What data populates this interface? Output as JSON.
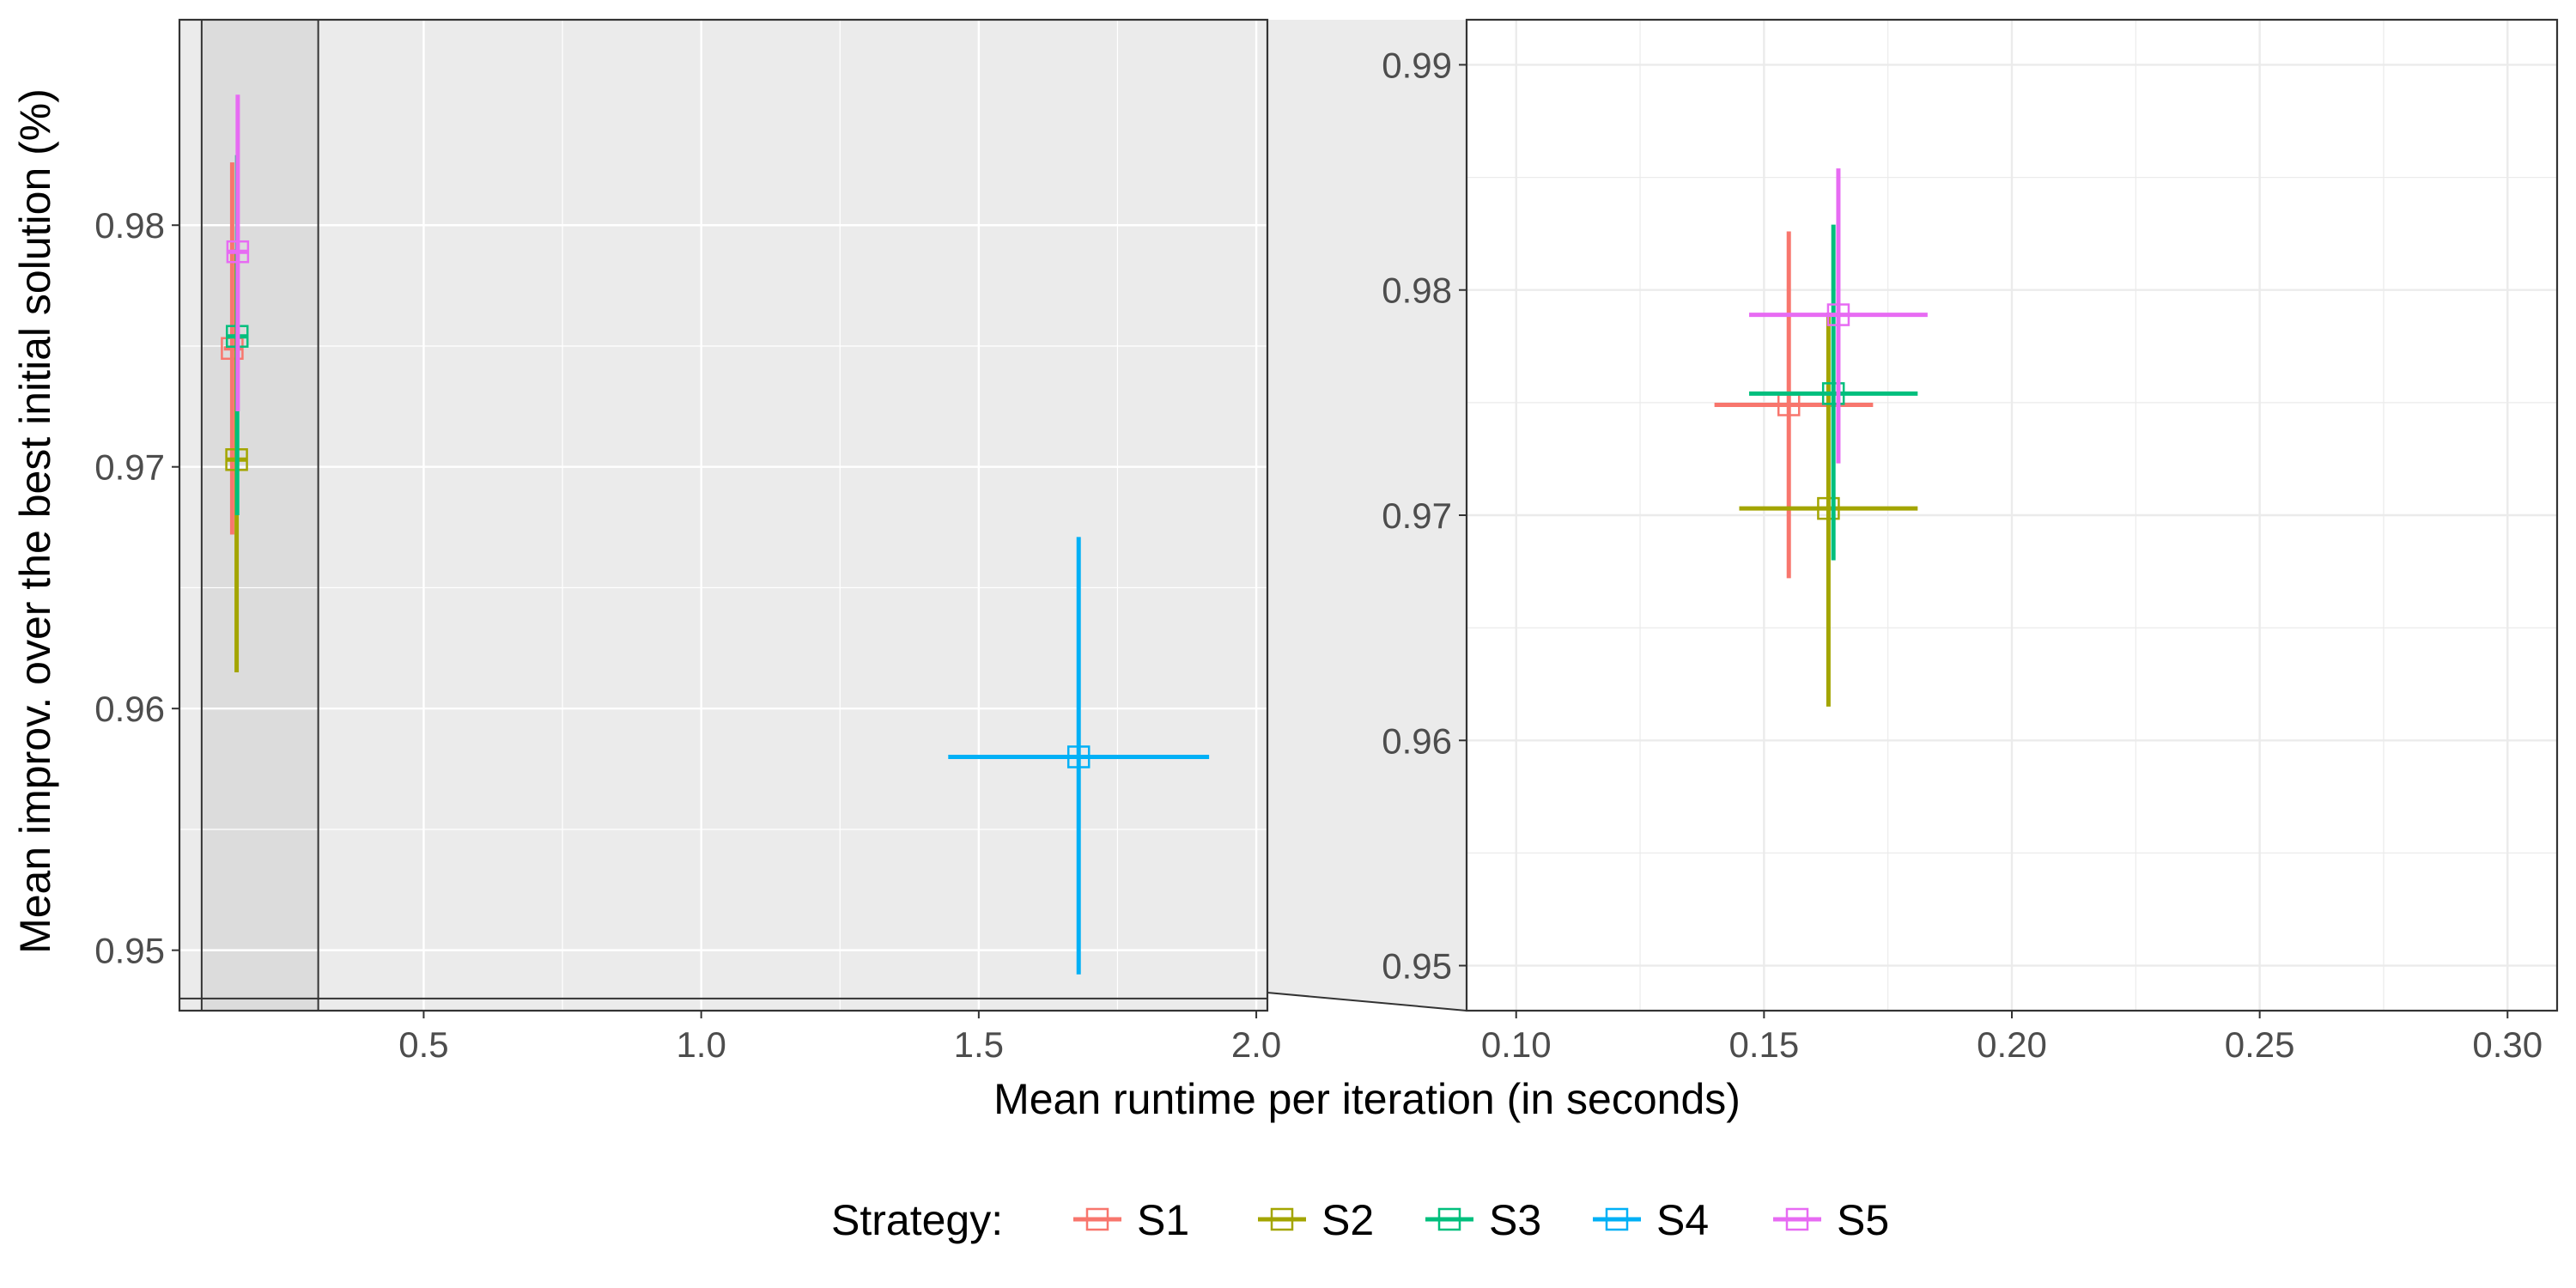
{
  "chart_data": [
    {
      "type": "scatter",
      "panel": "overview",
      "xlim": [
        0.06,
        2.02
      ],
      "ylim": [
        0.9475,
        0.9885
      ],
      "xticks": [
        0.5,
        1.0,
        1.5,
        2.0
      ],
      "xtick_labels": [
        "0.5",
        "1.0",
        "1.5",
        "2.0"
      ],
      "yticks": [
        0.95,
        0.96,
        0.97,
        0.98
      ],
      "ytick_labels": [
        "0.95",
        "0.96",
        "0.97",
        "0.98"
      ],
      "ylabel": "Mean improv. over the best initial solution (%)",
      "grid": true,
      "zoom_region": {
        "x": [
          0.1,
          0.31
        ],
        "y": [
          0.948,
          0.99
        ]
      },
      "series": [
        {
          "name": "S1",
          "x": 0.155,
          "y": 0.9749,
          "x_err": [
            0.14,
            0.172
          ],
          "y_err": [
            0.9672,
            0.9826
          ]
        },
        {
          "name": "S2",
          "x": 0.163,
          "y": 0.9703,
          "x_err": [
            0.145,
            0.181
          ],
          "y_err": [
            0.9615,
            0.979
          ]
        },
        {
          "name": "S3",
          "x": 0.164,
          "y": 0.9754,
          "x_err": [
            0.147,
            0.181
          ],
          "y_err": [
            0.968,
            0.9829
          ]
        },
        {
          "name": "S4",
          "x": 1.68,
          "y": 0.958,
          "x_err": [
            1.445,
            1.915
          ],
          "y_err": [
            0.949,
            0.9671
          ]
        },
        {
          "name": "S5",
          "x": 0.165,
          "y": 0.9789,
          "x_err": [
            0.147,
            0.183
          ],
          "y_err": [
            0.9723,
            0.9854
          ]
        }
      ]
    },
    {
      "type": "scatter",
      "panel": "zoom",
      "xlim": [
        0.09,
        0.31
      ],
      "ylim": [
        0.948,
        0.992
      ],
      "xticks": [
        0.1,
        0.15,
        0.2,
        0.25,
        0.3
      ],
      "xtick_labels": [
        "0.10",
        "0.15",
        "0.20",
        "0.25",
        "0.30"
      ],
      "yticks": [
        0.95,
        0.96,
        0.97,
        0.98,
        0.99
      ],
      "ytick_labels": [
        "0.95",
        "0.96",
        "0.97",
        "0.98",
        "0.99"
      ],
      "grid": true,
      "series": [
        {
          "name": "S1",
          "x": 0.155,
          "y": 0.9749,
          "x_err": [
            0.14,
            0.172
          ],
          "y_err": [
            0.9672,
            0.9826
          ]
        },
        {
          "name": "S2",
          "x": 0.163,
          "y": 0.9703,
          "x_err": [
            0.145,
            0.181
          ],
          "y_err": [
            0.9615,
            0.979
          ]
        },
        {
          "name": "S3",
          "x": 0.164,
          "y": 0.9754,
          "x_err": [
            0.147,
            0.181
          ],
          "y_err": [
            0.968,
            0.9829
          ]
        },
        {
          "name": "S5",
          "x": 0.165,
          "y": 0.9789,
          "x_err": [
            0.147,
            0.183
          ],
          "y_err": [
            0.9723,
            0.9854
          ]
        }
      ]
    }
  ],
  "xlabel": "Mean runtime per iteration (in seconds)",
  "legend": {
    "title": "Strategy:",
    "position": "bottom",
    "items": [
      {
        "name": "S1",
        "color": "#F8766D"
      },
      {
        "name": "S2",
        "color": "#A3A500"
      },
      {
        "name": "S3",
        "color": "#00BF7D"
      },
      {
        "name": "S4",
        "color": "#00B0F6"
      },
      {
        "name": "S5",
        "color": "#E76BF3"
      }
    ]
  },
  "colors": {
    "S1": "#F8766D",
    "S2": "#A3A500",
    "S3": "#00BF7D",
    "S4": "#00B0F6",
    "S5": "#E76BF3"
  }
}
